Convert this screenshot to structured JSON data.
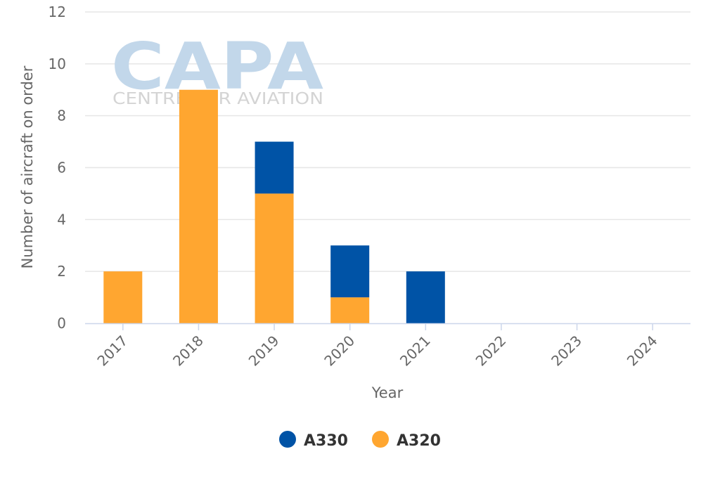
{
  "watermark": {
    "logo": "CAPA",
    "tagline": "CENTRE FOR AVIATION"
  },
  "chart_data": {
    "type": "bar",
    "stacked": true,
    "categories": [
      "2017",
      "2018",
      "2019",
      "2020",
      "2021",
      "2022",
      "2023",
      "2024"
    ],
    "series": [
      {
        "name": "A330",
        "color": "#0053a6",
        "values": [
          0,
          0,
          2,
          2,
          2,
          0,
          0,
          0
        ]
      },
      {
        "name": "A320",
        "color": "#ffa630",
        "values": [
          2,
          9,
          5,
          1,
          0,
          0,
          0,
          0
        ]
      }
    ],
    "title": "",
    "xlabel": "Year",
    "ylabel": "Number of aircraft on order",
    "ylim": [
      0,
      12
    ],
    "yticks": [
      0,
      2,
      4,
      6,
      8,
      10,
      12
    ],
    "grid": true,
    "legend_position": "bottom-center"
  }
}
